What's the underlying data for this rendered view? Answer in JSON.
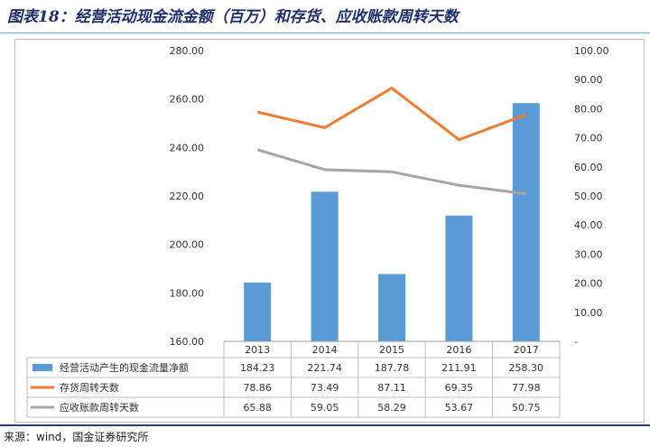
{
  "title": "图表18：经营活动现金流金额（百万）和存货、应收账款周转天数",
  "source": "来源：wind，国金证券研究所",
  "colors": {
    "bar": "#5b9bd5",
    "inventory_line": "#ed7d31",
    "receivable_line": "#a5a5a5",
    "grid": "#d9d9d9",
    "title": "#1f2f6b"
  },
  "chart_data": {
    "type": "bar",
    "categories": [
      "2013",
      "2014",
      "2015",
      "2016",
      "2017"
    ],
    "y_left": {
      "ylim": [
        160,
        280
      ],
      "ticks": [
        "160.00",
        "180.00",
        "200.00",
        "220.00",
        "240.00",
        "260.00",
        "280.00"
      ]
    },
    "y_right": {
      "ylim": [
        0,
        100
      ],
      "ticks": [
        "-",
        "10.00",
        "20.00",
        "30.00",
        "40.00",
        "50.00",
        "60.00",
        "70.00",
        "80.00",
        "90.00",
        "100.00"
      ]
    },
    "grid": false,
    "legend": "bottom-data-table",
    "series": [
      {
        "name": "经营活动产生的现金流量净额",
        "type": "bar",
        "axis": "left",
        "values": [
          184.23,
          221.74,
          187.78,
          211.91,
          258.3
        ],
        "labels": [
          "184.23",
          "221.74",
          "187.78",
          "211.91",
          "258.30"
        ]
      },
      {
        "name": "存货周转天数",
        "type": "line",
        "axis": "right",
        "values": [
          78.86,
          73.49,
          87.11,
          69.35,
          77.98
        ],
        "labels": [
          "78.86",
          "73.49",
          "87.11",
          "69.35",
          "77.98"
        ]
      },
      {
        "name": "应收账款周转天数",
        "type": "line",
        "axis": "right",
        "values": [
          65.88,
          59.05,
          58.29,
          53.67,
          50.75
        ],
        "labels": [
          "65.88",
          "59.05",
          "58.29",
          "53.67",
          "50.75"
        ]
      }
    ]
  }
}
